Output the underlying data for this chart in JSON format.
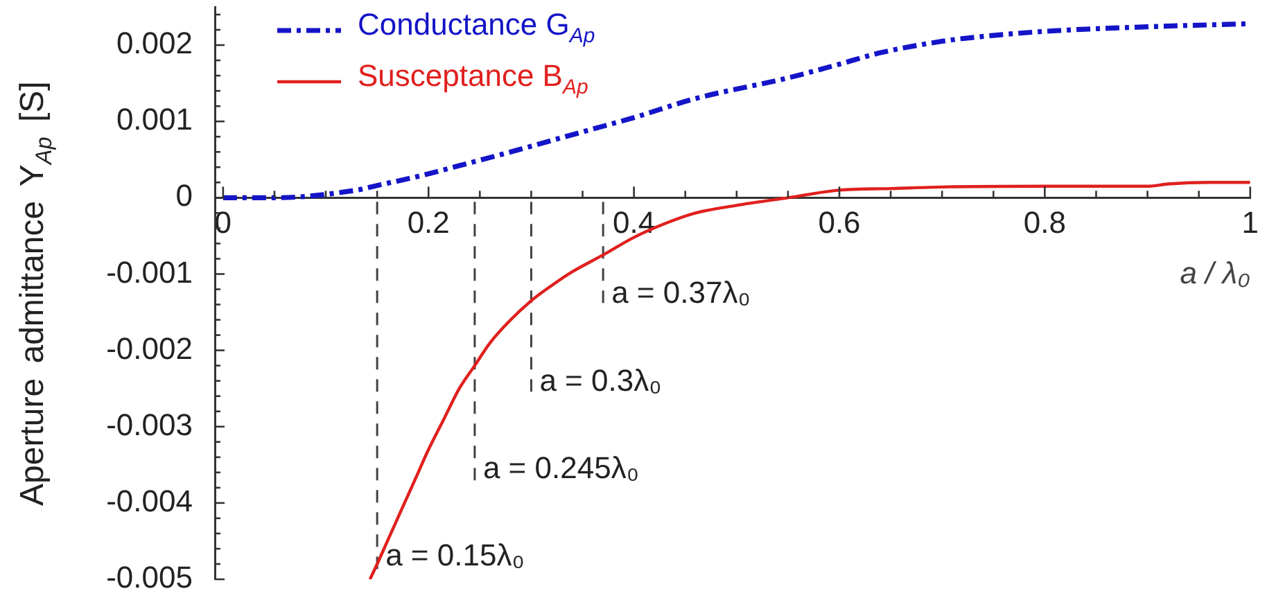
{
  "chart_data": {
    "type": "line",
    "xlabel": "a / λ₀",
    "ylabel": "Aperture admittance Y$_{Ap}$ [S]",
    "xlim": [
      -0.008,
      1
    ],
    "xticks": [
      0,
      {
        "value": 0.05,
        "label": null
      },
      {
        "value": 0.1,
        "label": null
      },
      {
        "value": 0.15,
        "label": null
      },
      0.2,
      {
        "value": 0.25,
        "label": null
      },
      {
        "value": 0.3,
        "label": null
      },
      {
        "value": 0.35,
        "label": null
      },
      0.4,
      {
        "value": 0.45,
        "label": null
      },
      {
        "value": 0.5,
        "label": null
      },
      {
        "value": 0.55,
        "label": null
      },
      0.6,
      {
        "value": 0.65,
        "label": null
      },
      {
        "value": 0.7,
        "label": null
      },
      {
        "value": 0.75,
        "label": null
      },
      0.8,
      {
        "value": 0.85,
        "label": null
      },
      {
        "value": 0.9,
        "label": null
      },
      {
        "value": 0.95,
        "label": null
      },
      1
    ],
    "ylim": [
      -0.005,
      0.0025
    ],
    "yticks": [
      -0.005,
      {
        "value": -0.0048,
        "label": null
      },
      {
        "value": -0.0046,
        "label": null
      },
      {
        "value": -0.0044,
        "label": null
      },
      {
        "value": -0.0042,
        "label": null
      },
      -0.004,
      {
        "value": -0.0038,
        "label": null
      },
      {
        "value": -0.0036,
        "label": null
      },
      {
        "value": -0.0034,
        "label": null
      },
      {
        "value": -0.0032,
        "label": null
      },
      -0.003,
      {
        "value": -0.0028,
        "label": null
      },
      {
        "value": -0.0026,
        "label": null
      },
      {
        "value": -0.0024,
        "label": null
      },
      {
        "value": -0.0022,
        "label": null
      },
      -0.002,
      {
        "value": -0.0018,
        "label": null
      },
      {
        "value": -0.0016,
        "label": null
      },
      {
        "value": -0.0014,
        "label": null
      },
      {
        "value": -0.0012,
        "label": null
      },
      -0.001,
      {
        "value": -0.0008,
        "label": null
      },
      {
        "value": -0.0006,
        "label": null
      },
      {
        "value": -0.0004,
        "label": null
      },
      {
        "value": -0.0002,
        "label": null
      },
      0,
      {
        "value": 0.0002,
        "label": null
      },
      {
        "value": 0.0004,
        "label": null
      },
      {
        "value": 0.0006,
        "label": null
      },
      {
        "value": 0.0008,
        "label": null
      },
      0.001,
      {
        "value": 0.0012,
        "label": null
      },
      {
        "value": 0.0014,
        "label": null
      },
      {
        "value": 0.0016,
        "label": null
      },
      {
        "value": 0.0018,
        "label": null
      },
      0.002,
      {
        "value": 0.0022,
        "label": null
      },
      {
        "value": 0.0024,
        "label": null
      }
    ],
    "legend": "top left",
    "series": [
      {
        "name": "Conductance G$_{Ap}$",
        "color": "#1414c8",
        "line_style": "dashed",
        "x": [
          0,
          0.05,
          0.13,
          0.15,
          0.19,
          0.23,
          0.28,
          0.32,
          0.36,
          0.4,
          0.46,
          0.55,
          0.6,
          0.64,
          0.7,
          0.73,
          0.8,
          0.9,
          1
        ],
        "values": [
          0,
          0,
          0.0001,
          0.00016,
          0.00028,
          0.00042,
          0.0006,
          0.00075,
          0.0009,
          0.00105,
          0.0013,
          0.00157,
          0.00175,
          0.0019,
          0.00205,
          0.0021,
          0.00218,
          0.00224,
          0.00228
        ]
      },
      {
        "name": "Susceptance B$_{Ap}$",
        "color": "#e0201e",
        "line_style": "solid",
        "x": [
          0.143,
          0.15,
          0.16,
          0.17,
          0.18,
          0.19,
          0.2,
          0.215,
          0.23,
          0.245,
          0.26,
          0.28,
          0.3,
          0.32,
          0.34,
          0.37,
          0.4,
          0.43,
          0.46,
          0.5,
          0.55,
          0.6,
          0.65,
          0.7,
          0.8,
          0.9,
          0.92,
          0.96,
          1
        ],
        "values": [
          -0.005,
          -0.0048,
          -0.0045,
          -0.0042,
          -0.0039,
          -0.0036,
          -0.0033,
          -0.0029,
          -0.0025,
          -0.0022,
          -0.0019,
          -0.0016,
          -0.00135,
          -0.00115,
          -0.00097,
          -0.00075,
          -0.00052,
          -0.00034,
          -0.0002,
          -0.0001,
          0,
          0.0001,
          0.00012,
          0.00014,
          0.00015,
          0.00015,
          0.00018,
          0.0002,
          0.0002
        ]
      }
    ],
    "ref_lines": [
      {
        "axis": "x",
        "value": 0.15,
        "label": "a = 0.15λ₀",
        "line_style": "dashed",
        "color": "#404040"
      },
      {
        "axis": "x",
        "value": 0.245,
        "label": "a = 0.245λ₀",
        "line_style": "dashed",
        "color": "#404040"
      },
      {
        "axis": "x",
        "value": 0.3,
        "label": "a = 0.3λ₀",
        "line_style": "dashed",
        "color": "#404040"
      },
      {
        "axis": "x",
        "value": 0.37,
        "label": "a = 0.37λ₀",
        "line_style": "dashed",
        "color": "#404040"
      }
    ]
  }
}
